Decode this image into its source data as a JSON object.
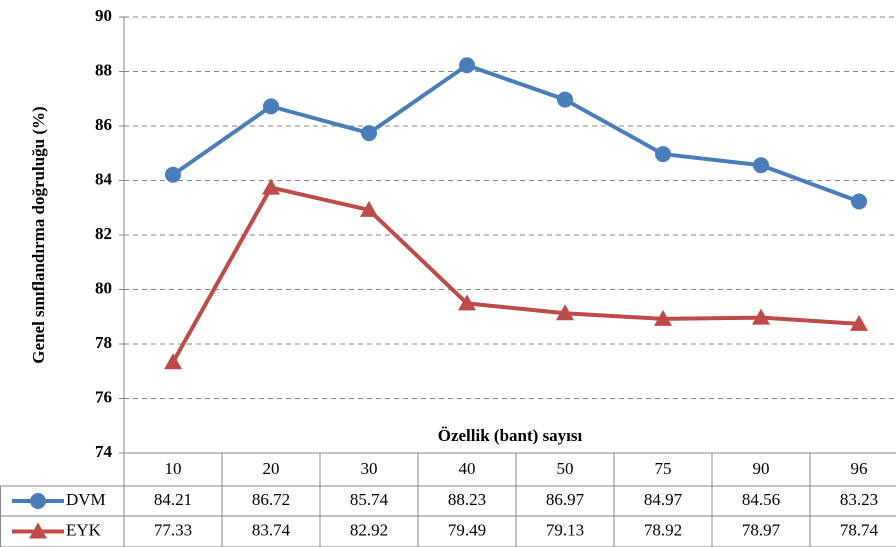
{
  "chart_data": {
    "type": "line",
    "x_label": "Özellik (bant) sayısı",
    "y_label": "Genel sınıflandırma doğruluğu (%)",
    "categories": [
      "10",
      "20",
      "30",
      "40",
      "50",
      "75",
      "90",
      "96"
    ],
    "series": [
      {
        "name": "DVM",
        "color": "#4a7ebb",
        "marker": "circle",
        "values": [
          84.21,
          86.72,
          85.74,
          88.23,
          86.97,
          84.97,
          84.56,
          83.23
        ]
      },
      {
        "name": "EYK",
        "color": "#be4b48",
        "marker": "triangle",
        "values": [
          77.33,
          83.74,
          82.92,
          79.49,
          79.13,
          78.92,
          78.97,
          78.74
        ]
      }
    ],
    "ylim": [
      74,
      90
    ],
    "yticks": [
      74,
      76,
      78,
      80,
      82,
      84,
      86,
      88,
      90
    ],
    "grid": true,
    "data_table": true
  }
}
